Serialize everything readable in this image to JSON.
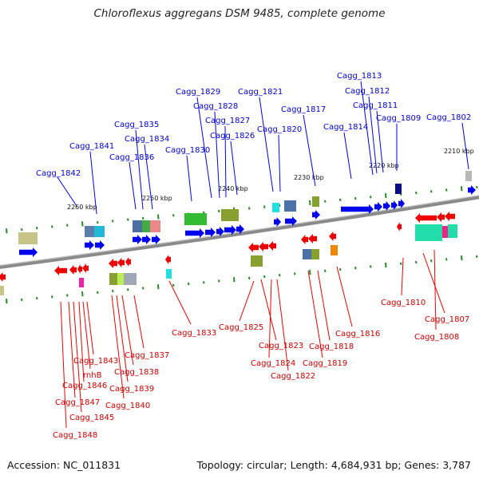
{
  "title": "Chloroflexus aggregans DSM 9485, complete genome",
  "footer": {
    "accession": "Accession: NC_011831",
    "summary": "Topology: circular; Length: 4,684,931 bp; Genes: 3,787"
  },
  "colors": {
    "forward_strand": "#0000ee",
    "reverse_strand": "#ee0000",
    "backbone": "#8a8a8a",
    "tick": "#2a8a2a"
  },
  "scale": {
    "ticks": [
      "2260 kbp",
      "2250 kbp",
      "2240 kbp",
      "2230 kbp",
      "2220 kbp",
      "2210 kbp"
    ]
  },
  "forward_genes": [
    "Cagg_1842",
    "Cagg_1841",
    "Cagg_1836",
    "Cagg_1835",
    "Cagg_1834",
    "Cagg_1830",
    "Cagg_1829",
    "Cagg_1828",
    "Cagg_1827",
    "Cagg_1826",
    "Cagg_1821",
    "Cagg_1820",
    "Cagg_1817",
    "Cagg_1814",
    "Cagg_1813",
    "Cagg_1812",
    "Cagg_1811",
    "Cagg_1809",
    "Cagg_1802"
  ],
  "reverse_genes": [
    "Cagg_1833",
    "Cagg_1825",
    "Cagg_1823",
    "Cagg_1824",
    "Cagg_1822",
    "Cagg_1818",
    "Cagg_1819",
    "Cagg_1816",
    "Cagg_1810",
    "Cagg_1807",
    "Cagg_1808",
    "Cagg_1837",
    "Cagg_1838",
    "Cagg_1839",
    "Cagg_1840",
    "Cagg_1843",
    "rnhB",
    "Cagg_1846",
    "Cagg_1847",
    "Cagg_1845",
    "Cagg_1848"
  ]
}
